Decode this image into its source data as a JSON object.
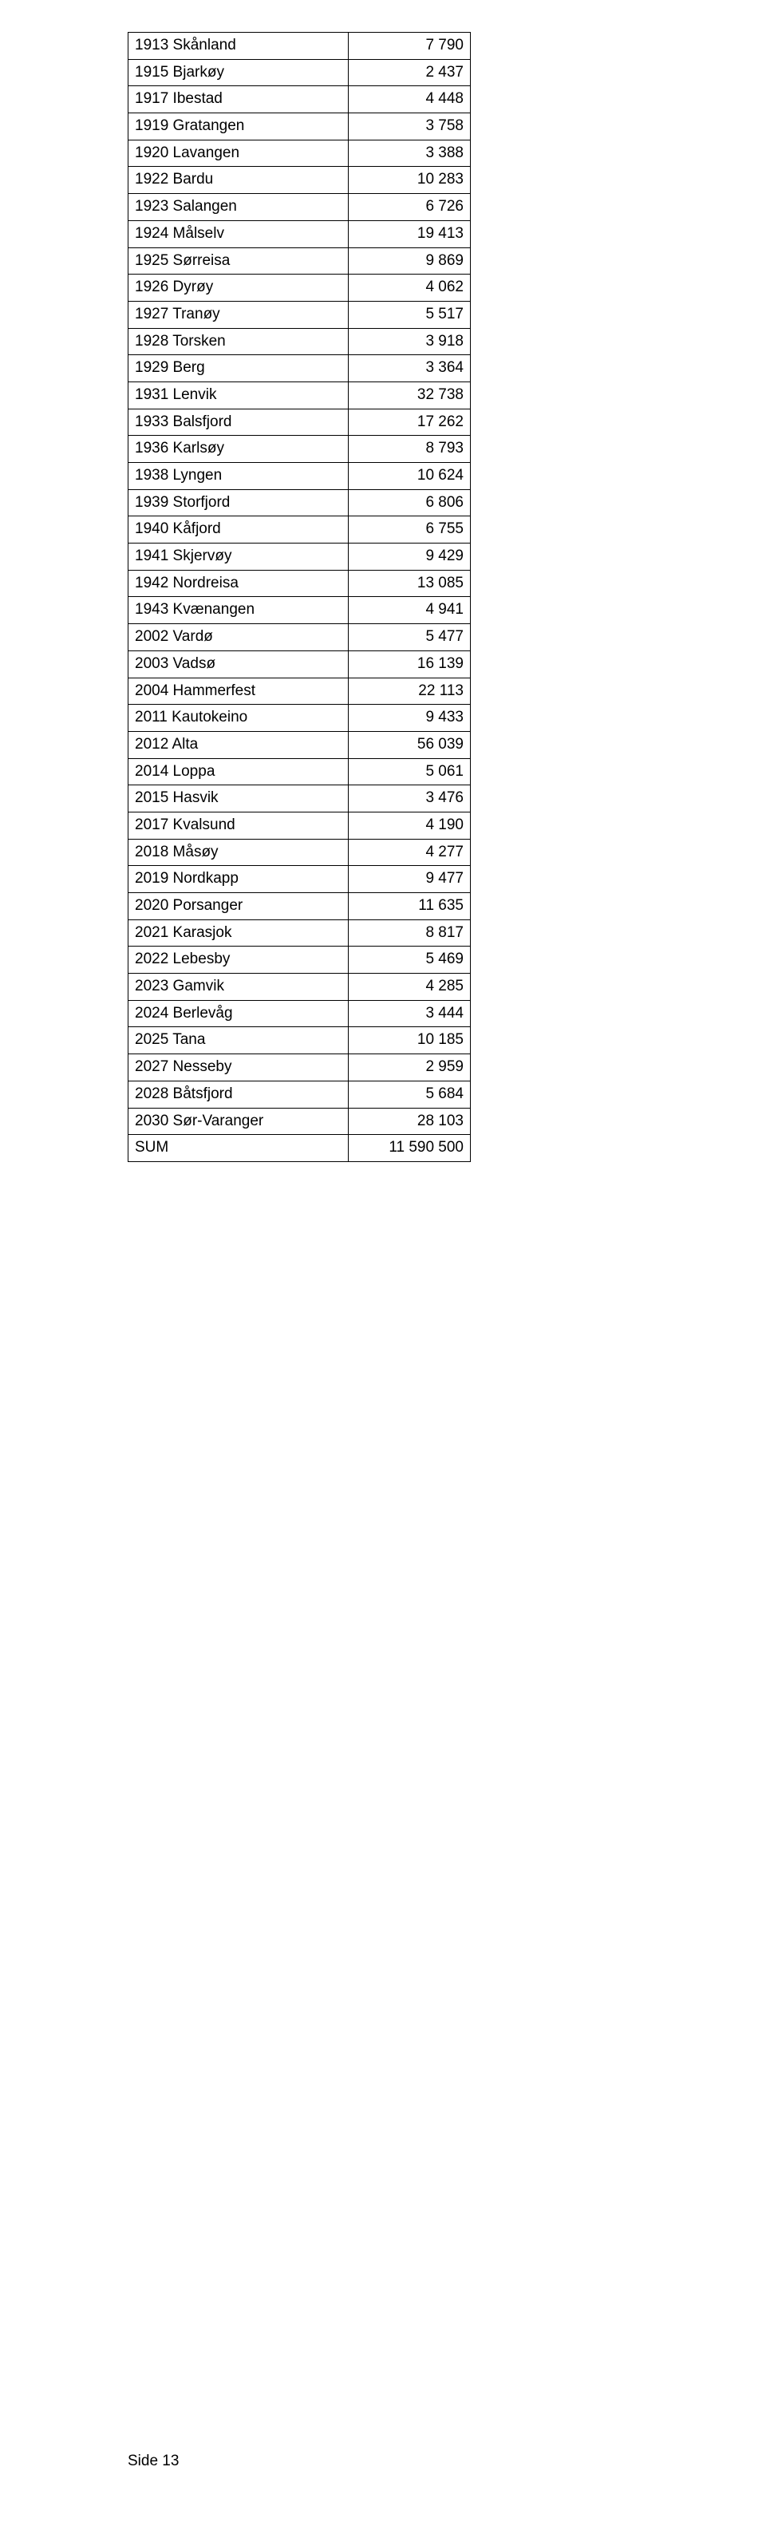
{
  "table": {
    "rows": [
      {
        "name": "1913 Skånland",
        "value": "7 790"
      },
      {
        "name": "1915 Bjarkøy",
        "value": "2 437"
      },
      {
        "name": "1917 Ibestad",
        "value": "4 448"
      },
      {
        "name": "1919 Gratangen",
        "value": "3 758"
      },
      {
        "name": "1920 Lavangen",
        "value": "3 388"
      },
      {
        "name": "1922 Bardu",
        "value": "10 283"
      },
      {
        "name": "1923 Salangen",
        "value": "6 726"
      },
      {
        "name": "1924 Målselv",
        "value": "19 413"
      },
      {
        "name": "1925 Sørreisa",
        "value": "9 869"
      },
      {
        "name": "1926 Dyrøy",
        "value": "4 062"
      },
      {
        "name": "1927 Tranøy",
        "value": "5 517"
      },
      {
        "name": "1928 Torsken",
        "value": "3 918"
      },
      {
        "name": "1929 Berg",
        "value": "3 364"
      },
      {
        "name": "1931 Lenvik",
        "value": "32 738"
      },
      {
        "name": "1933 Balsfjord",
        "value": "17 262"
      },
      {
        "name": "1936 Karlsøy",
        "value": "8 793"
      },
      {
        "name": "1938 Lyngen",
        "value": "10 624"
      },
      {
        "name": "1939 Storfjord",
        "value": "6 806"
      },
      {
        "name": "1940 Kåfjord",
        "value": "6 755"
      },
      {
        "name": "1941 Skjervøy",
        "value": "9 429"
      },
      {
        "name": "1942 Nordreisa",
        "value": "13 085"
      },
      {
        "name": "1943 Kvænangen",
        "value": "4 941"
      },
      {
        "name": "2002 Vardø",
        "value": "5 477"
      },
      {
        "name": "2003 Vadsø",
        "value": "16 139"
      },
      {
        "name": "2004 Hammerfest",
        "value": "22 113"
      },
      {
        "name": "2011 Kautokeino",
        "value": "9 433"
      },
      {
        "name": "2012 Alta",
        "value": "56 039"
      },
      {
        "name": "2014 Loppa",
        "value": "5 061"
      },
      {
        "name": "2015 Hasvik",
        "value": "3 476"
      },
      {
        "name": "2017 Kvalsund",
        "value": "4 190"
      },
      {
        "name": "2018 Måsøy",
        "value": "4 277"
      },
      {
        "name": "2019 Nordkapp",
        "value": "9 477"
      },
      {
        "name": "2020 Porsanger",
        "value": "11 635"
      },
      {
        "name": "2021 Karasjok",
        "value": "8 817"
      },
      {
        "name": "2022 Lebesby",
        "value": "5 469"
      },
      {
        "name": "2023 Gamvik",
        "value": "4 285"
      },
      {
        "name": "2024 Berlevåg",
        "value": "3 444"
      },
      {
        "name": "2025 Tana",
        "value": "10 185"
      },
      {
        "name": "2027 Nesseby",
        "value": "2 959"
      },
      {
        "name": "2028 Båtsfjord",
        "value": "5 684"
      },
      {
        "name": "2030 Sør-Varanger",
        "value": "28 103"
      },
      {
        "name": "SUM",
        "value": "11 590 500"
      }
    ]
  },
  "footer": "Side 13"
}
